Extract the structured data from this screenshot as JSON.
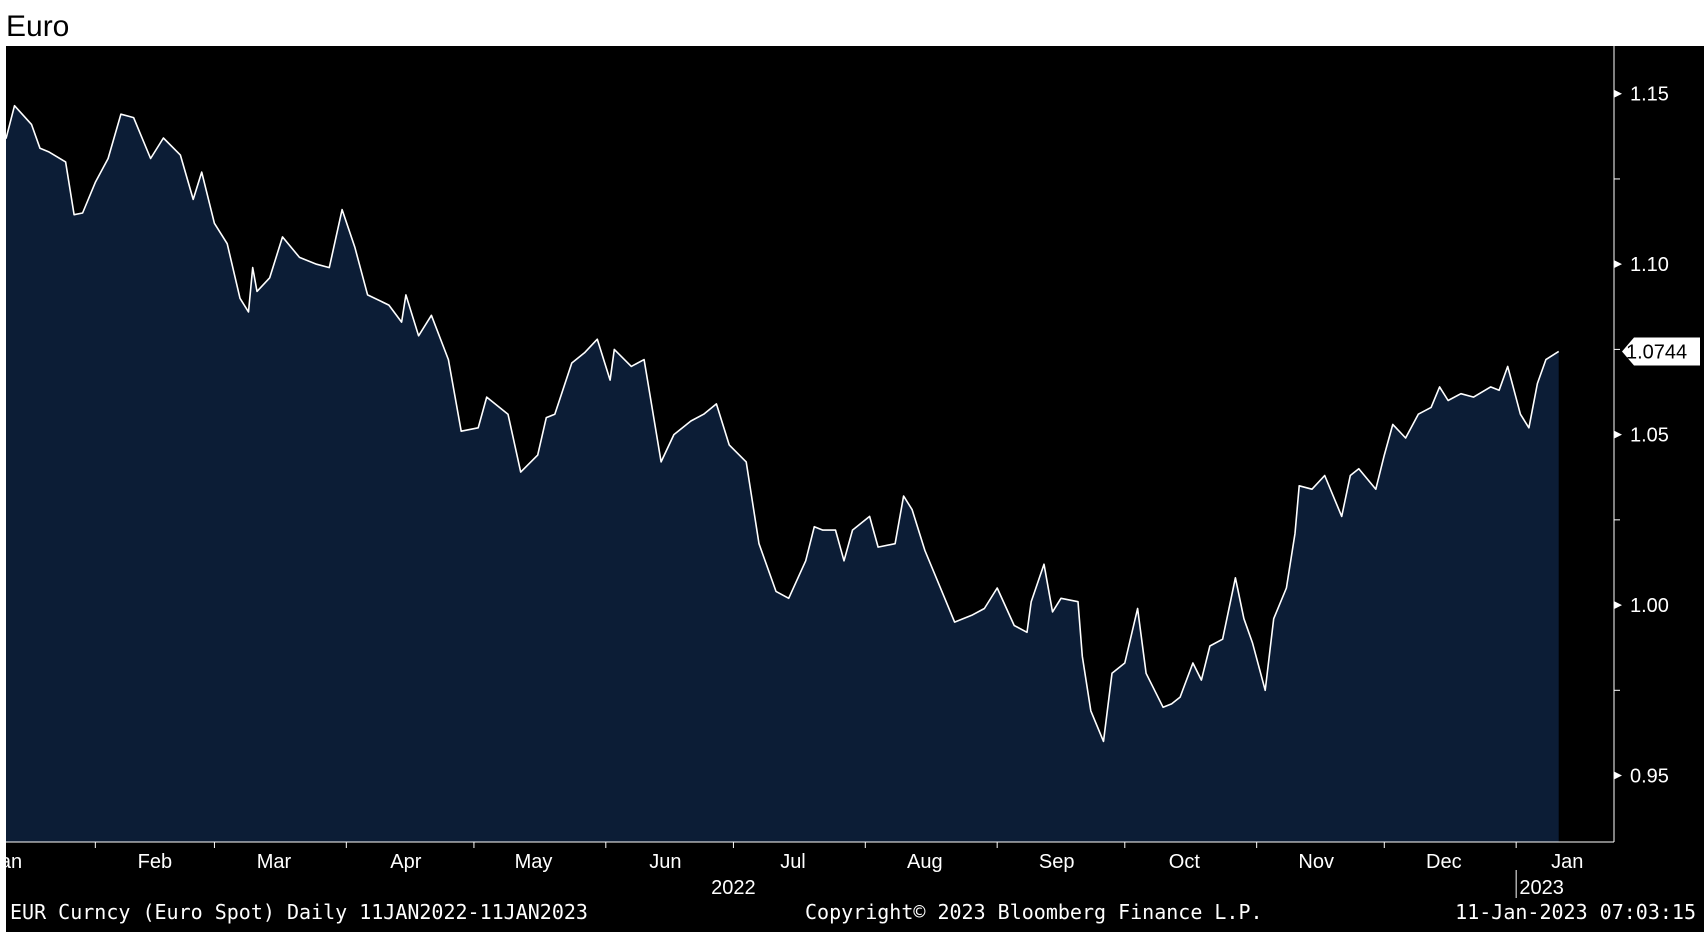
{
  "title": "Euro",
  "footer": {
    "left": "EUR Curncy (Euro Spot)  Daily 11JAN2022-11JAN2023",
    "center": "Copyright© 2023 Bloomberg Finance L.P.",
    "right": "11-Jan-2023 07:03:15"
  },
  "colors": {
    "background": "#000000",
    "area_fill": "#0c1d36",
    "line": "#ffffff",
    "axis": "#ffffff"
  },
  "chart_data": {
    "type": "area",
    "title": "Euro",
    "xlabel": "",
    "ylabel": "",
    "x_range": [
      "2022-01-11",
      "2023-01-11"
    ],
    "ylim": [
      0.94,
      1.16
    ],
    "y_ticks": [
      0.95,
      1.0,
      1.05,
      1.1,
      1.15
    ],
    "y_tick_labels": [
      "0.95",
      "1.00",
      "1.05",
      "1.10",
      "1.15"
    ],
    "month_labels": [
      {
        "label": "Jan",
        "date": "2022-01-11"
      },
      {
        "label": "Feb",
        "date": "2022-02-15"
      },
      {
        "label": "Mar",
        "date": "2022-03-15"
      },
      {
        "label": "Apr",
        "date": "2022-04-15"
      },
      {
        "label": "May",
        "date": "2022-05-15"
      },
      {
        "label": "Jun",
        "date": "2022-06-15"
      },
      {
        "label": "Jul",
        "date": "2022-07-15"
      },
      {
        "label": "Aug",
        "date": "2022-08-15"
      },
      {
        "label": "Sep",
        "date": "2022-09-15"
      },
      {
        "label": "Oct",
        "date": "2022-10-15"
      },
      {
        "label": "Nov",
        "date": "2022-11-15"
      },
      {
        "label": "Dec",
        "date": "2022-12-15"
      },
      {
        "label": "Jan",
        "date": "2023-01-13"
      }
    ],
    "month_ticks": [
      "2022-02-01",
      "2022-03-01",
      "2022-04-01",
      "2022-05-01",
      "2022-06-01",
      "2022-07-01",
      "2022-08-01",
      "2022-09-01",
      "2022-10-01",
      "2022-11-01",
      "2022-12-01",
      "2023-01-01"
    ],
    "year_labels": [
      {
        "label": "2022",
        "date": "2022-07-01"
      },
      {
        "label": "2023",
        "date": "2023-01-07"
      }
    ],
    "last_value_label": "1.0744",
    "series": [
      {
        "points": [
          [
            "2022-01-11",
            1.1368
          ],
          [
            "2022-01-13",
            1.1465
          ],
          [
            "2022-01-17",
            1.141
          ],
          [
            "2022-01-19",
            1.134
          ],
          [
            "2022-01-21",
            1.133
          ],
          [
            "2022-01-25",
            1.13
          ],
          [
            "2022-01-27",
            1.1145
          ],
          [
            "2022-01-29",
            1.115
          ],
          [
            "2022-02-01",
            1.124
          ],
          [
            "2022-02-04",
            1.131
          ],
          [
            "2022-02-07",
            1.144
          ],
          [
            "2022-02-10",
            1.143
          ],
          [
            "2022-02-14",
            1.131
          ],
          [
            "2022-02-17",
            1.137
          ],
          [
            "2022-02-21",
            1.132
          ],
          [
            "2022-02-24",
            1.119
          ],
          [
            "2022-02-26",
            1.127
          ],
          [
            "2022-03-01",
            1.112
          ],
          [
            "2022-03-04",
            1.106
          ],
          [
            "2022-03-07",
            1.09
          ],
          [
            "2022-03-09",
            1.086
          ],
          [
            "2022-03-10",
            1.099
          ],
          [
            "2022-03-11",
            1.092
          ],
          [
            "2022-03-14",
            1.096
          ],
          [
            "2022-03-17",
            1.108
          ],
          [
            "2022-03-21",
            1.102
          ],
          [
            "2022-03-25",
            1.1
          ],
          [
            "2022-03-28",
            1.099
          ],
          [
            "2022-03-31",
            1.116
          ],
          [
            "2022-04-03",
            1.105
          ],
          [
            "2022-04-06",
            1.091
          ],
          [
            "2022-04-11",
            1.088
          ],
          [
            "2022-04-14",
            1.083
          ],
          [
            "2022-04-15",
            1.091
          ],
          [
            "2022-04-18",
            1.079
          ],
          [
            "2022-04-21",
            1.085
          ],
          [
            "2022-04-25",
            1.072
          ],
          [
            "2022-04-28",
            1.051
          ],
          [
            "2022-05-02",
            1.052
          ],
          [
            "2022-05-04",
            1.061
          ],
          [
            "2022-05-09",
            1.056
          ],
          [
            "2022-05-12",
            1.039
          ],
          [
            "2022-05-16",
            1.044
          ],
          [
            "2022-05-18",
            1.055
          ],
          [
            "2022-05-20",
            1.056
          ],
          [
            "2022-05-24",
            1.071
          ],
          [
            "2022-05-27",
            1.074
          ],
          [
            "2022-05-30",
            1.078
          ],
          [
            "2022-06-02",
            1.066
          ],
          [
            "2022-06-03",
            1.075
          ],
          [
            "2022-06-07",
            1.07
          ],
          [
            "2022-06-10",
            1.072
          ],
          [
            "2022-06-14",
            1.042
          ],
          [
            "2022-06-17",
            1.05
          ],
          [
            "2022-06-21",
            1.054
          ],
          [
            "2022-06-24",
            1.056
          ],
          [
            "2022-06-27",
            1.059
          ],
          [
            "2022-06-30",
            1.047
          ],
          [
            "2022-07-04",
            1.042
          ],
          [
            "2022-07-07",
            1.018
          ],
          [
            "2022-07-11",
            1.004
          ],
          [
            "2022-07-14",
            1.002
          ],
          [
            "2022-07-18",
            1.013
          ],
          [
            "2022-07-20",
            1.023
          ],
          [
            "2022-07-22",
            1.022
          ],
          [
            "2022-07-25",
            1.022
          ],
          [
            "2022-07-27",
            1.013
          ],
          [
            "2022-07-29",
            1.022
          ],
          [
            "2022-08-02",
            1.026
          ],
          [
            "2022-08-04",
            1.017
          ],
          [
            "2022-08-08",
            1.018
          ],
          [
            "2022-08-10",
            1.032
          ],
          [
            "2022-08-12",
            1.028
          ],
          [
            "2022-08-15",
            1.016
          ],
          [
            "2022-08-19",
            1.004
          ],
          [
            "2022-08-22",
            0.995
          ],
          [
            "2022-08-26",
            0.997
          ],
          [
            "2022-08-29",
            0.999
          ],
          [
            "2022-09-01",
            1.005
          ],
          [
            "2022-09-05",
            0.994
          ],
          [
            "2022-09-08",
            0.992
          ],
          [
            "2022-09-09",
            1.001
          ],
          [
            "2022-09-12",
            1.012
          ],
          [
            "2022-09-14",
            0.998
          ],
          [
            "2022-09-16",
            1.002
          ],
          [
            "2022-09-20",
            1.001
          ],
          [
            "2022-09-21",
            0.985
          ],
          [
            "2022-09-23",
            0.969
          ],
          [
            "2022-09-26",
            0.96
          ],
          [
            "2022-09-28",
            0.98
          ],
          [
            "2022-10-01",
            0.983
          ],
          [
            "2022-10-04",
            0.999
          ],
          [
            "2022-10-06",
            0.98
          ],
          [
            "2022-10-10",
            0.97
          ],
          [
            "2022-10-12",
            0.971
          ],
          [
            "2022-10-14",
            0.973
          ],
          [
            "2022-10-17",
            0.983
          ],
          [
            "2022-10-19",
            0.978
          ],
          [
            "2022-10-21",
            0.988
          ],
          [
            "2022-10-24",
            0.99
          ],
          [
            "2022-10-27",
            1.008
          ],
          [
            "2022-10-29",
            0.996
          ],
          [
            "2022-10-31",
            0.989
          ],
          [
            "2022-11-03",
            0.975
          ],
          [
            "2022-11-05",
            0.996
          ],
          [
            "2022-11-08",
            1.005
          ],
          [
            "2022-11-10",
            1.021
          ],
          [
            "2022-11-11",
            1.035
          ],
          [
            "2022-11-14",
            1.034
          ],
          [
            "2022-11-17",
            1.038
          ],
          [
            "2022-11-21",
            1.026
          ],
          [
            "2022-11-23",
            1.038
          ],
          [
            "2022-11-25",
            1.04
          ],
          [
            "2022-11-29",
            1.034
          ],
          [
            "2022-12-01",
            1.044
          ],
          [
            "2022-12-03",
            1.053
          ],
          [
            "2022-12-06",
            1.049
          ],
          [
            "2022-12-09",
            1.056
          ],
          [
            "2022-12-12",
            1.058
          ],
          [
            "2022-12-14",
            1.064
          ],
          [
            "2022-12-16",
            1.06
          ],
          [
            "2022-12-19",
            1.062
          ],
          [
            "2022-12-22",
            1.061
          ],
          [
            "2022-12-26",
            1.064
          ],
          [
            "2022-12-28",
            1.063
          ],
          [
            "2022-12-30",
            1.07
          ],
          [
            "2023-01-02",
            1.056
          ],
          [
            "2023-01-04",
            1.052
          ],
          [
            "2023-01-06",
            1.065
          ],
          [
            "2023-01-08",
            1.072
          ],
          [
            "2023-01-11",
            1.0744
          ]
        ]
      }
    ]
  }
}
